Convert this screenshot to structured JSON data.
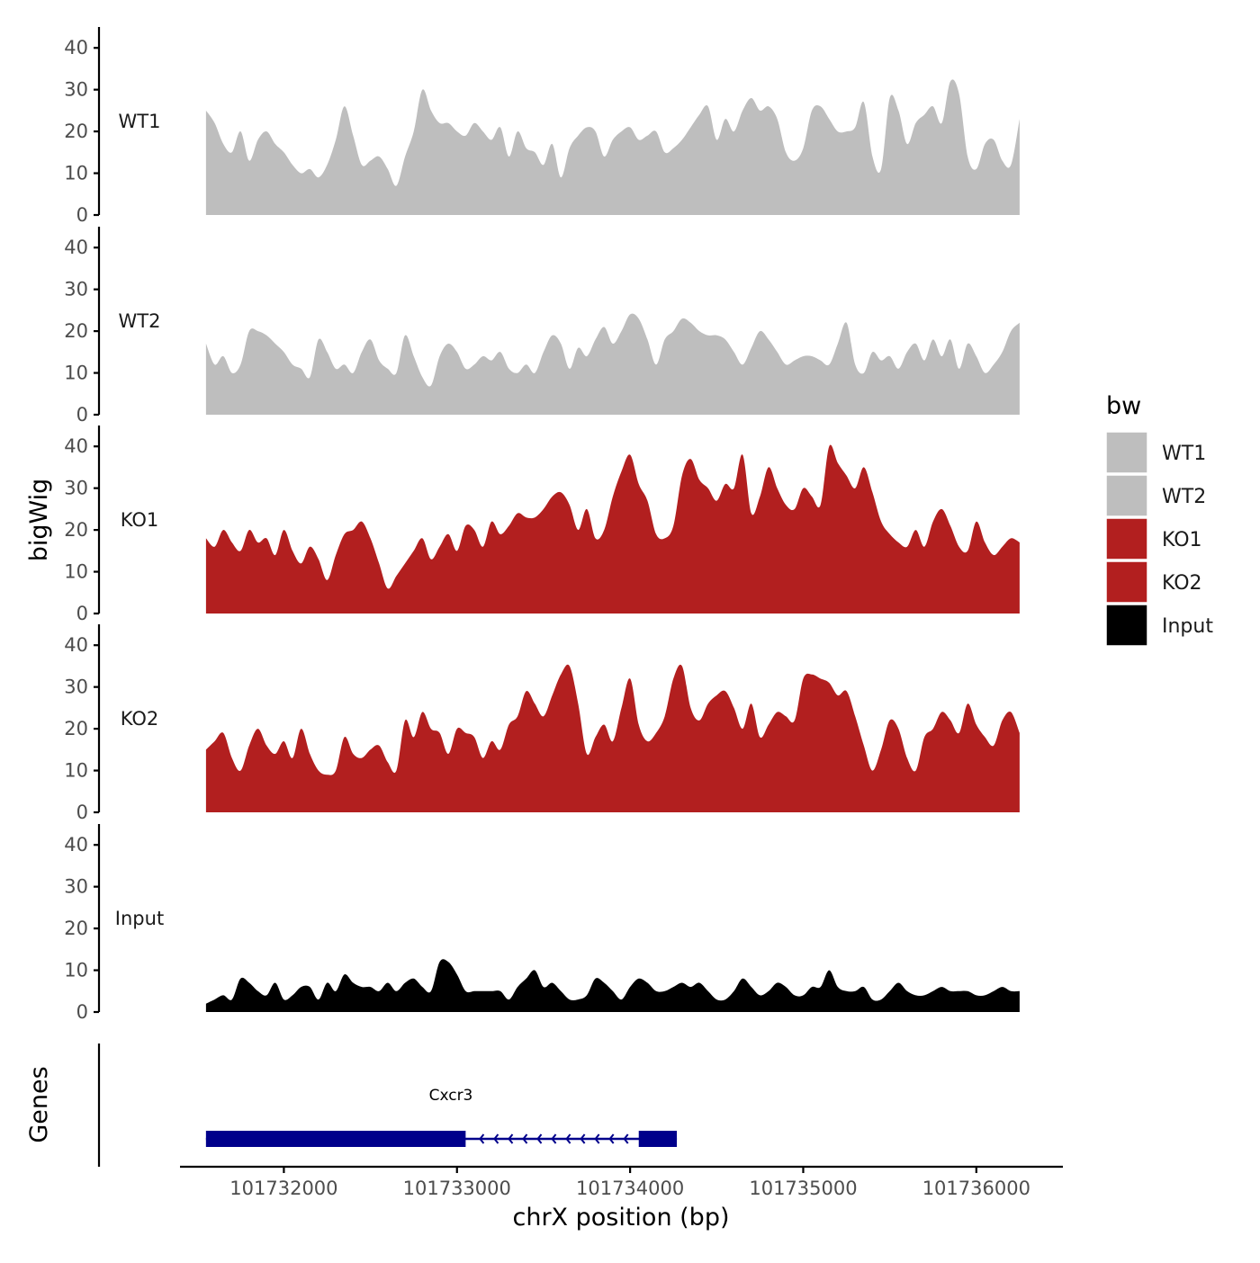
{
  "chart_data": {
    "type": "area",
    "ylabel": "bigWig",
    "xlabel": "chrX position (bp)",
    "xlim": [
      101731400,
      101736500
    ],
    "ylim": [
      0,
      45
    ],
    "yticks": [
      0,
      10,
      20,
      30,
      40
    ],
    "xticks": [
      101732000,
      101733000,
      101734000,
      101735000,
      101736000
    ],
    "xtick_labels": [
      "101732000",
      "101733000",
      "101734000",
      "101735000",
      "101736000"
    ],
    "grid": false,
    "legend": {
      "title": "bw",
      "placement": "right",
      "entries": [
        {
          "label": "WT1",
          "color": "#BEBEBE"
        },
        {
          "label": "WT2",
          "color": "#BEBEBE"
        },
        {
          "label": "KO1",
          "color": "#B21F1F"
        },
        {
          "label": "KO2",
          "color": "#B21F1F"
        },
        {
          "label": "Input",
          "color": "#000000"
        }
      ]
    },
    "series": [
      {
        "name": "WT1",
        "color": "#BEBEBE",
        "x": [
          101731550,
          101731600,
          101731650,
          101731700,
          101731750,
          101731800,
          101731850,
          101731900,
          101731950,
          101732000,
          101732050,
          101732100,
          101732150,
          101732200,
          101732250,
          101732300,
          101732350,
          101732400,
          101732450,
          101732500,
          101732550,
          101732600,
          101732650,
          101732700,
          101732750,
          101732800,
          101732850,
          101732900,
          101732950,
          101733000,
          101733050,
          101733100,
          101733150,
          101733200,
          101733250,
          101733300,
          101733350,
          101733400,
          101733450,
          101733500,
          101733550,
          101733600,
          101733650,
          101733700,
          101733750,
          101733800,
          101733850,
          101733900,
          101733950,
          101734000,
          101734050,
          101734100,
          101734150,
          101734200,
          101734250,
          101734300,
          101734350,
          101734400,
          101734450,
          101734500,
          101734550,
          101734600,
          101734650,
          101734700,
          101734750,
          101734800,
          101734850,
          101734900,
          101734950,
          101735000,
          101735050,
          101735100,
          101735150,
          101735200,
          101735250,
          101735300,
          101735350,
          101735400,
          101735450,
          101735500,
          101735550,
          101735600,
          101735650,
          101735700,
          101735750,
          101735800,
          101735850,
          101735900,
          101735950,
          101736000,
          101736050,
          101736100,
          101736150,
          101736200,
          101736250
        ],
        "y": [
          25,
          22,
          17,
          15,
          20,
          13,
          18,
          20,
          17,
          15,
          12,
          10,
          11,
          9,
          12,
          18,
          26,
          19,
          12,
          13,
          14,
          11,
          7,
          14,
          20,
          30,
          25,
          22,
          22,
          20,
          19,
          22,
          20,
          18,
          21,
          14,
          20,
          16,
          15,
          12,
          17,
          9,
          16,
          19,
          21,
          20,
          14,
          18,
          20,
          21,
          18,
          19,
          20,
          15,
          16,
          18,
          21,
          24,
          26,
          18,
          23,
          20,
          25,
          28,
          25,
          26,
          23,
          15,
          13,
          16,
          25,
          26,
          23,
          20,
          20,
          21,
          27,
          14,
          11,
          28,
          25,
          17,
          22,
          24,
          26,
          22,
          32,
          29,
          14,
          11,
          17,
          18,
          13,
          12,
          23
        ]
      },
      {
        "name": "WT2",
        "color": "#BEBEBE",
        "x": [
          101731550,
          101731600,
          101731650,
          101731700,
          101731750,
          101731800,
          101731850,
          101731900,
          101731950,
          101732000,
          101732050,
          101732100,
          101732150,
          101732200,
          101732250,
          101732300,
          101732350,
          101732400,
          101732450,
          101732500,
          101732550,
          101732600,
          101732650,
          101732700,
          101732750,
          101732800,
          101732850,
          101732900,
          101732950,
          101733000,
          101733050,
          101733100,
          101733150,
          101733200,
          101733250,
          101733300,
          101733350,
          101733400,
          101733450,
          101733500,
          101733550,
          101733600,
          101733650,
          101733700,
          101733750,
          101733800,
          101733850,
          101733900,
          101733950,
          101734000,
          101734050,
          101734100,
          101734150,
          101734200,
          101734250,
          101734300,
          101734350,
          101734400,
          101734450,
          101734500,
          101734550,
          101734600,
          101734650,
          101734700,
          101734750,
          101734800,
          101734850,
          101734900,
          101734950,
          101735000,
          101735050,
          101735100,
          101735150,
          101735200,
          101735250,
          101735300,
          101735350,
          101735400,
          101735450,
          101735500,
          101735550,
          101735600,
          101735650,
          101735700,
          101735750,
          101735800,
          101735850,
          101735900,
          101735950,
          101736000,
          101736050,
          101736100,
          101736150,
          101736200,
          101736250
        ],
        "y": [
          17,
          12,
          14,
          10,
          12,
          20,
          20,
          19,
          17,
          15,
          12,
          11,
          9,
          18,
          15,
          11,
          12,
          10,
          15,
          18,
          13,
          11,
          10,
          19,
          14,
          9,
          7,
          14,
          17,
          15,
          11,
          12,
          14,
          13,
          15,
          11,
          10,
          12,
          10,
          15,
          19,
          17,
          11,
          16,
          14,
          18,
          21,
          17,
          20,
          24,
          23,
          18,
          12,
          18,
          20,
          23,
          22,
          20,
          19,
          19,
          18,
          15,
          12,
          16,
          20,
          18,
          15,
          12,
          13,
          14,
          14,
          13,
          12,
          17,
          22,
          12,
          10,
          15,
          13,
          14,
          11,
          15,
          17,
          13,
          18,
          14,
          18,
          11,
          17,
          14,
          10,
          12,
          15,
          20,
          22
        ]
      },
      {
        "name": "KO1",
        "color": "#B21F1F",
        "x": [
          101731550,
          101731600,
          101731650,
          101731700,
          101731750,
          101731800,
          101731850,
          101731900,
          101731950,
          101732000,
          101732050,
          101732100,
          101732150,
          101732200,
          101732250,
          101732300,
          101732350,
          101732400,
          101732450,
          101732500,
          101732550,
          101732600,
          101732650,
          101732700,
          101732750,
          101732800,
          101732850,
          101732900,
          101732950,
          101733000,
          101733050,
          101733100,
          101733150,
          101733200,
          101733250,
          101733300,
          101733350,
          101733400,
          101733450,
          101733500,
          101733550,
          101733600,
          101733650,
          101733700,
          101733750,
          101733800,
          101733850,
          101733900,
          101733950,
          101734000,
          101734050,
          101734100,
          101734150,
          101734200,
          101734250,
          101734300,
          101734350,
          101734400,
          101734450,
          101734500,
          101734550,
          101734600,
          101734650,
          101734700,
          101734750,
          101734800,
          101734850,
          101734900,
          101734950,
          101735000,
          101735050,
          101735100,
          101735150,
          101735200,
          101735250,
          101735300,
          101735350,
          101735400,
          101735450,
          101735500,
          101735550,
          101735600,
          101735650,
          101735700,
          101735750,
          101735800,
          101735850,
          101735900,
          101735950,
          101736000,
          101736050,
          101736100,
          101736150,
          101736200,
          101736250
        ],
        "y": [
          18,
          16,
          20,
          17,
          15,
          20,
          17,
          18,
          14,
          20,
          15,
          12,
          16,
          13,
          8,
          14,
          19,
          20,
          22,
          18,
          12,
          6,
          9,
          12,
          15,
          18,
          13,
          16,
          19,
          15,
          21,
          20,
          16,
          22,
          19,
          21,
          24,
          23,
          23,
          25,
          28,
          29,
          26,
          20,
          25,
          18,
          20,
          28,
          34,
          38,
          31,
          27,
          19,
          18,
          21,
          33,
          37,
          32,
          30,
          27,
          31,
          30,
          38,
          24,
          28,
          35,
          30,
          26,
          25,
          30,
          28,
          26,
          40,
          36,
          33,
          30,
          35,
          29,
          22,
          19,
          17,
          16,
          20,
          16,
          22,
          25,
          21,
          16,
          15,
          22,
          17,
          14,
          16,
          18,
          17
        ]
      },
      {
        "name": "KO2",
        "color": "#B21F1F",
        "x": [
          101731550,
          101731600,
          101731650,
          101731700,
          101731750,
          101731800,
          101731850,
          101731900,
          101731950,
          101732000,
          101732050,
          101732100,
          101732150,
          101732200,
          101732250,
          101732300,
          101732350,
          101732400,
          101732450,
          101732500,
          101732550,
          101732600,
          101732650,
          101732700,
          101732750,
          101732800,
          101732850,
          101732900,
          101732950,
          101733000,
          101733050,
          101733100,
          101733150,
          101733200,
          101733250,
          101733300,
          101733350,
          101733400,
          101733450,
          101733500,
          101733550,
          101733600,
          101733650,
          101733700,
          101733750,
          101733800,
          101733850,
          101733900,
          101733950,
          101734000,
          101734050,
          101734100,
          101734150,
          101734200,
          101734250,
          101734300,
          101734350,
          101734400,
          101734450,
          101734500,
          101734550,
          101734600,
          101734650,
          101734700,
          101734750,
          101734800,
          101734850,
          101734900,
          101734950,
          101735000,
          101735050,
          101735100,
          101735150,
          101735200,
          101735250,
          101735300,
          101735350,
          101735400,
          101735450,
          101735500,
          101735550,
          101735600,
          101735650,
          101735700,
          101735750,
          101735800,
          101735850,
          101735900,
          101735950,
          101736000,
          101736050,
          101736100,
          101736150,
          101736200,
          101736250
        ],
        "y": [
          15,
          17,
          19,
          13,
          10,
          16,
          20,
          16,
          14,
          17,
          13,
          20,
          14,
          10,
          9,
          10,
          18,
          14,
          13,
          15,
          16,
          12,
          10,
          22,
          18,
          24,
          20,
          19,
          14,
          20,
          19,
          18,
          13,
          17,
          15,
          21,
          23,
          29,
          26,
          23,
          28,
          33,
          35,
          26,
          14,
          18,
          21,
          17,
          25,
          32,
          21,
          17,
          19,
          23,
          32,
          35,
          25,
          22,
          26,
          28,
          29,
          25,
          20,
          26,
          18,
          21,
          24,
          23,
          22,
          32,
          33,
          32,
          31,
          28,
          29,
          23,
          16,
          10,
          15,
          22,
          20,
          13,
          10,
          18,
          20,
          24,
          22,
          19,
          26,
          21,
          18,
          16,
          22,
          24,
          19
        ]
      },
      {
        "name": "Input",
        "color": "#000000",
        "x": [
          101731550,
          101731600,
          101731650,
          101731700,
          101731750,
          101731800,
          101731850,
          101731900,
          101731950,
          101732000,
          101732050,
          101732100,
          101732150,
          101732200,
          101732250,
          101732300,
          101732350,
          101732400,
          101732450,
          101732500,
          101732550,
          101732600,
          101732650,
          101732700,
          101732750,
          101732800,
          101732850,
          101732900,
          101732950,
          101733000,
          101733050,
          101733100,
          101733150,
          101733200,
          101733250,
          101733300,
          101733350,
          101733400,
          101733450,
          101733500,
          101733550,
          101733600,
          101733650,
          101733700,
          101733750,
          101733800,
          101733850,
          101733900,
          101733950,
          101734000,
          101734050,
          101734100,
          101734150,
          101734200,
          101734250,
          101734300,
          101734350,
          101734400,
          101734450,
          101734500,
          101734550,
          101734600,
          101734650,
          101734700,
          101734750,
          101734800,
          101734850,
          101734900,
          101734950,
          101735000,
          101735050,
          101735100,
          101735150,
          101735200,
          101735250,
          101735300,
          101735350,
          101735400,
          101735450,
          101735500,
          101735550,
          101735600,
          101735650,
          101735700,
          101735750,
          101735800,
          101735850,
          101735900,
          101735950,
          101736000,
          101736050,
          101736100,
          101736150,
          101736200,
          101736250
        ],
        "y": [
          2,
          3,
          4,
          3,
          8,
          7,
          5,
          4,
          7,
          3,
          4,
          6,
          6,
          3,
          7,
          5,
          9,
          7,
          6,
          6,
          5,
          7,
          5,
          7,
          8,
          6,
          5,
          12,
          12,
          9,
          5,
          5,
          5,
          5,
          5,
          3,
          6,
          8,
          10,
          6,
          7,
          5,
          3,
          3,
          4,
          8,
          7,
          5,
          3,
          6,
          8,
          7,
          5,
          5,
          6,
          7,
          6,
          7,
          5,
          3,
          3,
          5,
          8,
          6,
          4,
          5,
          7,
          6,
          4,
          4,
          6,
          6,
          10,
          6,
          5,
          5,
          6,
          3,
          3,
          5,
          7,
          5,
          4,
          4,
          5,
          6,
          5,
          5,
          5,
          4,
          4,
          5,
          6,
          5,
          5
        ]
      }
    ],
    "gene_track": {
      "label": "Genes",
      "genes": [
        {
          "name": "Cxcr3",
          "color": "#00008B",
          "strand": "-",
          "start": 101731550,
          "end": 101734270,
          "exons": [
            [
              101731550,
              101733050
            ],
            [
              101734050,
              101734270
            ]
          ]
        }
      ]
    }
  }
}
